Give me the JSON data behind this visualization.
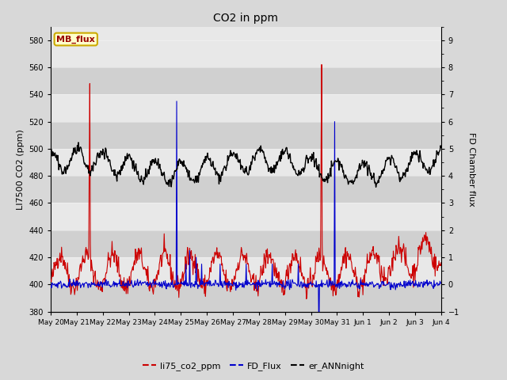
{
  "title": "CO2 in ppm",
  "ylabel_left": "LI7500 CO2 (ppm)",
  "ylabel_right": "FD Chamber flux",
  "ylim_left": [
    380,
    590
  ],
  "ylim_right": [
    -1.0,
    9.5
  ],
  "yticks_left": [
    380,
    400,
    420,
    440,
    460,
    480,
    500,
    520,
    540,
    560,
    580
  ],
  "yticks_right": [
    -1.0,
    0.0,
    1.0,
    2.0,
    3.0,
    4.0,
    5.0,
    6.0,
    7.0,
    8.0,
    9.0
  ],
  "bg_color": "#d8d8d8",
  "plot_bg_color": "#e8e8e8",
  "band_light": "#e8e8e8",
  "band_dark": "#d0d0d0",
  "line_colors": {
    "li75": "#cc0000",
    "fd_flux": "#0000cc",
    "er_ann": "#000000"
  },
  "legend_entries": [
    "li75_co2_ppm",
    "FD_Flux",
    "er_ANNnight"
  ],
  "mb_flux_label": "MB_flux",
  "mb_flux_bg": "#ffffcc",
  "mb_flux_border": "#ccaa00",
  "mb_flux_text_color": "#990000",
  "x_tick_labels": [
    "May 20",
    "May 21",
    "May 22",
    "May 23",
    "May 24",
    "May 25",
    "May 26",
    "May 27",
    "May 28",
    "May 29",
    "May 30",
    "May 31",
    "Jun 1",
    "Jun 2",
    "Jun 3",
    "Jun 4"
  ]
}
